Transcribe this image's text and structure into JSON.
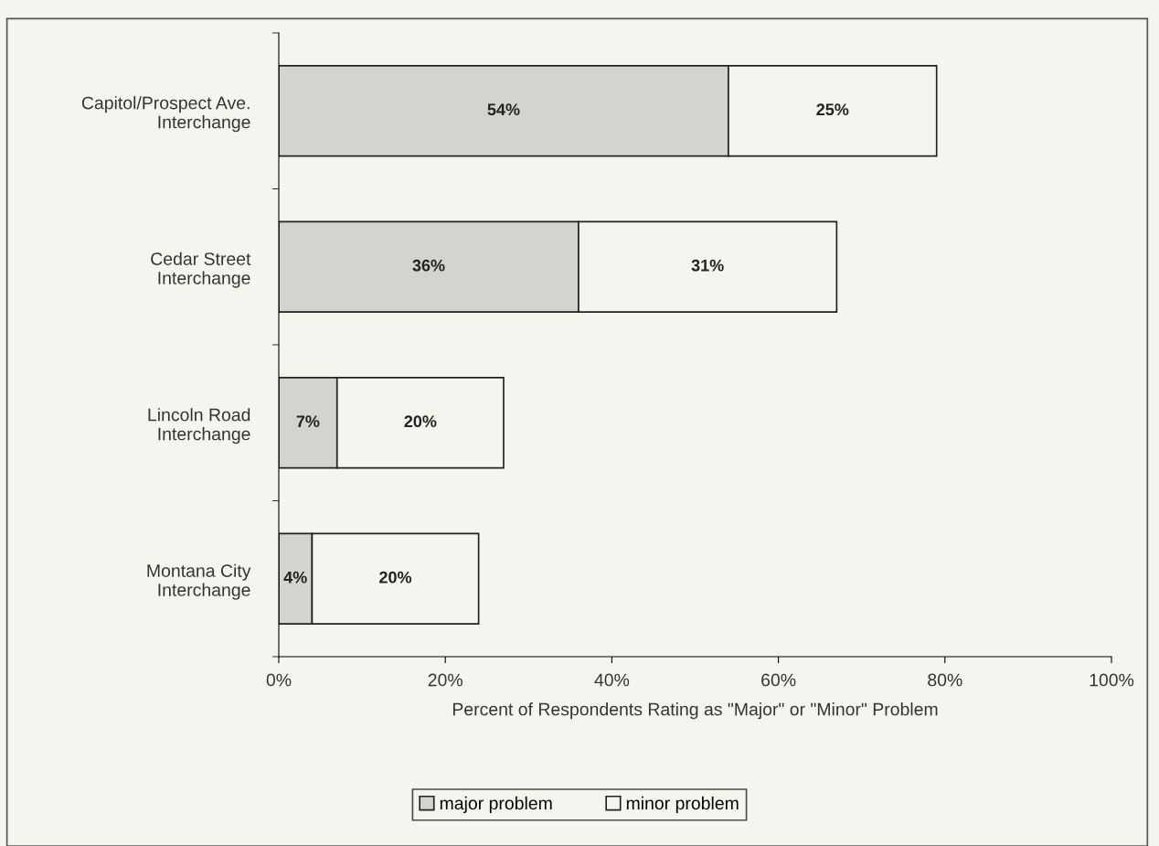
{
  "chart_data": {
    "type": "bar",
    "orientation": "horizontal",
    "stacked": true,
    "xlabel": "Percent of Respondents Rating as \"Major\" or \"Minor\" Problem",
    "categories": [
      "Capitol/Prospect Ave.\nInterchange",
      "Cedar Street\nInterchange",
      "Lincoln Road\nInterchange",
      "Montana City\nInterchange"
    ],
    "series": [
      {
        "name": "major problem",
        "color": "#d3d3cf",
        "values": [
          54,
          36,
          7,
          4
        ],
        "value_labels": [
          "54%",
          "36%",
          "7%",
          "4%"
        ]
      },
      {
        "name": "minor problem",
        "color": "#f5f5f0",
        "values": [
          25,
          31,
          20,
          20
        ],
        "value_labels": [
          "25%",
          "31%",
          "20%",
          "20%"
        ]
      }
    ],
    "xlim": [
      0,
      100
    ],
    "xticks": [
      {
        "value": 0,
        "label": "0%"
      },
      {
        "value": 20,
        "label": "20%"
      },
      {
        "value": 40,
        "label": "40%"
      },
      {
        "value": 60,
        "label": "60%"
      },
      {
        "value": 80,
        "label": "80%"
      },
      {
        "value": 100,
        "label": "100%"
      }
    ],
    "grid": false,
    "legend": "bottom"
  }
}
